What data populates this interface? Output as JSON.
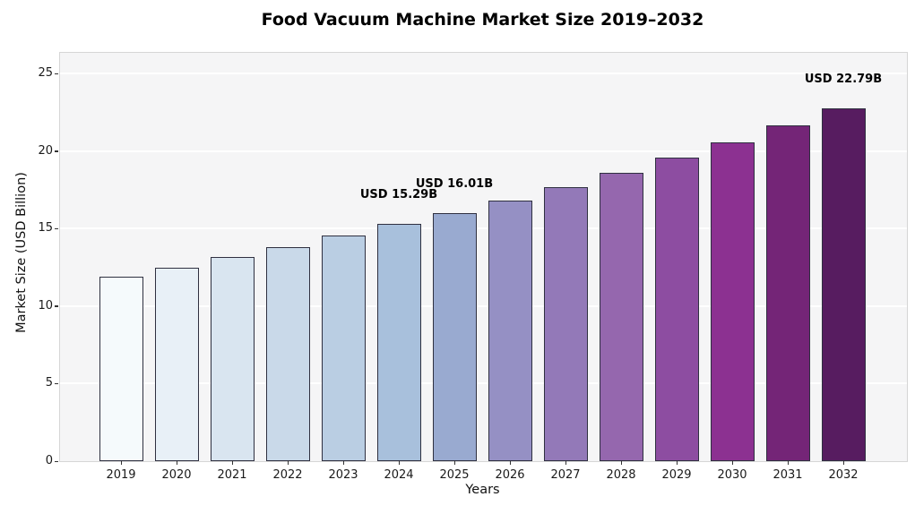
{
  "chart_data": {
    "type": "bar",
    "title": "Food Vacuum Machine Market Size 2019–2032",
    "xlabel": "Years",
    "ylabel": "Market Size (USD Billion)",
    "categories": [
      "2019",
      "2020",
      "2021",
      "2022",
      "2023",
      "2024",
      "2025",
      "2026",
      "2027",
      "2028",
      "2029",
      "2030",
      "2031",
      "2032"
    ],
    "values": [
      11.9,
      12.51,
      13.15,
      13.83,
      14.54,
      15.29,
      16.01,
      16.84,
      17.71,
      18.62,
      19.59,
      20.6,
      21.66,
      22.79
    ],
    "bar_colors": [
      "#f5fafc",
      "#e8f0f7",
      "#d9e5f0",
      "#c9d9e9",
      "#bacee3",
      "#a8c0dc",
      "#99aad0",
      "#9590c4",
      "#9379b8",
      "#9567ae",
      "#8d4da1",
      "#8c3191",
      "#742577",
      "#571c60"
    ],
    "annotations": [
      {
        "category": "2024",
        "label": "USD 15.29B"
      },
      {
        "category": "2025",
        "label": "USD 16.01B"
      },
      {
        "category": "2032",
        "label": "USD 22.79B"
      }
    ],
    "yticks": [
      0,
      5,
      10,
      15,
      20,
      25
    ],
    "ylim": [
      0,
      26.35
    ],
    "grid": true,
    "legend": "none"
  },
  "colors": {
    "plot_bg": "#f5f5f6",
    "grid": "#ffffff",
    "bar_edge": "#2f3040",
    "spine": "#d6d6d6",
    "tick": "#333333"
  }
}
